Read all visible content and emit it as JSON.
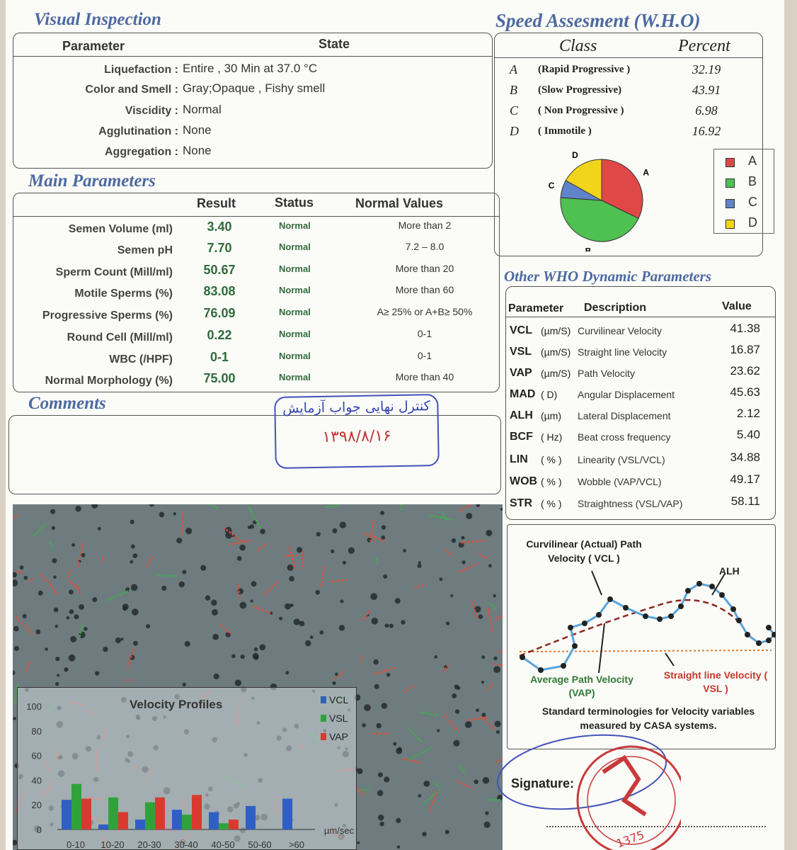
{
  "visual_inspection": {
    "title": "Visual Inspection",
    "col_parameter": "Parameter",
    "col_state": "State",
    "rows": [
      {
        "label": "Liquefaction :",
        "value": "Entire , 30  Min at  37.0 °C"
      },
      {
        "label": "Color and Smell :",
        "value": "Gray;Opaque  ,     Fishy smell"
      },
      {
        "label": "Viscidity :",
        "value": "Normal"
      },
      {
        "label": "Agglutination :",
        "value": "None"
      },
      {
        "label": "Aggregation :",
        "value": "None"
      }
    ]
  },
  "main_parameters": {
    "title": "Main Parameters",
    "col_result": "Result",
    "col_status": "Status",
    "col_normal": "Normal Values",
    "rows": [
      {
        "label": "Semen Volume (ml)",
        "result": "3.40",
        "status": "Normal",
        "normal": "More than  2"
      },
      {
        "label": "Semen pH",
        "result": "7.70",
        "status": "Normal",
        "normal": "7.2 – 8.0"
      },
      {
        "label": "Sperm Count (Mill/ml)",
        "result": "50.67",
        "status": "Normal",
        "normal": "More than  20"
      },
      {
        "label": "Motile Sperms (%)",
        "result": "83.08",
        "status": "Normal",
        "normal": "More than 60"
      },
      {
        "label": "Progressive Sperms (%)",
        "result": "76.09",
        "status": "Normal",
        "normal": "A≥ 25% or A+B≥ 50%"
      },
      {
        "label": "Round Cell (Mill/ml)",
        "result": "0.22",
        "status": "Normal",
        "normal": "0-1"
      },
      {
        "label": "WBC  (/HPF)",
        "result": "0-1",
        "status": "Normal",
        "normal": "0-1"
      },
      {
        "label": "Normal Morphology (%)",
        "result": "75.00",
        "status": "Normal",
        "normal": "More than  40"
      }
    ]
  },
  "comments": {
    "title": "Comments",
    "stamp_line1": "کنترل نهایی جواب آزمایش",
    "stamp_line2": "۱۳۹۸/۸/۱۶"
  },
  "speed": {
    "title": "Speed Assesment (W.H.O)",
    "col_class": "Class",
    "col_percent": "Percent",
    "rows": [
      {
        "code": "A",
        "name": "(Rapid Progressive )",
        "percent": "32.19"
      },
      {
        "code": "B",
        "name": "(Slow Progressive)",
        "percent": "43.91"
      },
      {
        "code": "C",
        "name": "( Non Progressive )",
        "percent": "6.98"
      },
      {
        "code": "D",
        "name": "( Immotile )",
        "percent": "16.92"
      }
    ],
    "legend": [
      "A",
      "B",
      "C",
      "D"
    ],
    "colors": {
      "A": "#e04848",
      "B": "#4fc052",
      "C": "#5f84c9",
      "D": "#f2d51a"
    }
  },
  "other_who": {
    "title": "Other WHO Dynamic Parameters",
    "col_parameter": "Parameter",
    "col_description": "Description",
    "col_value": "Value",
    "rows": [
      {
        "param": "VCL",
        "unit": "(µm/S)",
        "desc": "Curvilinear Velocity",
        "value": "41.38"
      },
      {
        "param": "VSL",
        "unit": "(µm/S)",
        "desc": "Straight line Velocity",
        "value": "16.87"
      },
      {
        "param": "VAP",
        "unit": "(µm/S)",
        "desc": "Path Velocity",
        "value": "23.62"
      },
      {
        "param": "MAD",
        "unit": "( D)",
        "desc": "Angular Displacement",
        "value": "45.63"
      },
      {
        "param": "ALH",
        "unit": "(µm)",
        "desc": "Lateral Displacement",
        "value": "2.12"
      },
      {
        "param": "BCF",
        "unit": "( Hz)",
        "desc": "Beat cross frequency",
        "value": "5.40"
      },
      {
        "param": "LIN",
        "unit": "( % )",
        "desc": "Linearity (VSL/VCL)",
        "value": "34.88"
      },
      {
        "param": "WOB",
        "unit": "( % )",
        "desc": "Wobble  (VAP/VCL)",
        "value": "49.17"
      },
      {
        "param": "STR",
        "unit": "( % )",
        "desc": "Straightness (VSL/VAP)",
        "value": "58.11"
      }
    ]
  },
  "diagram": {
    "vcl_label": "Curvilinear (Actual) Path Velocity ( VCL )",
    "alh_label": "ALH",
    "vap_label": "Average Path Velocity (VAP)",
    "vsl_label": "Straight line Velocity ( VSL )",
    "caption": "Standard terminologies for Velocity variables measured by CASA systems."
  },
  "signature": {
    "label": "Signature:",
    "seal_text": "1375"
  },
  "chart_data": {
    "type": "bar",
    "title": "Velocity Profiles",
    "xlabel": "µm/sec",
    "categories": [
      "0-10",
      "10-20",
      "20-30",
      "30-40",
      "40-50",
      "50-60",
      ">60"
    ],
    "yticks": [
      "0",
      "20",
      "40",
      "60",
      "80",
      "100"
    ],
    "ylim": [
      0,
      100
    ],
    "series": [
      {
        "name": "VCL",
        "color": "#2f5fc4",
        "values": [
          24,
          4,
          8,
          16,
          14,
          19,
          25
        ]
      },
      {
        "name": "VSL",
        "color": "#2fa33a",
        "values": [
          37,
          26,
          22,
          12,
          5,
          0,
          0
        ]
      },
      {
        "name": "VAP",
        "color": "#d83a30",
        "values": [
          25,
          14,
          26,
          28,
          8,
          0,
          0
        ]
      }
    ]
  }
}
